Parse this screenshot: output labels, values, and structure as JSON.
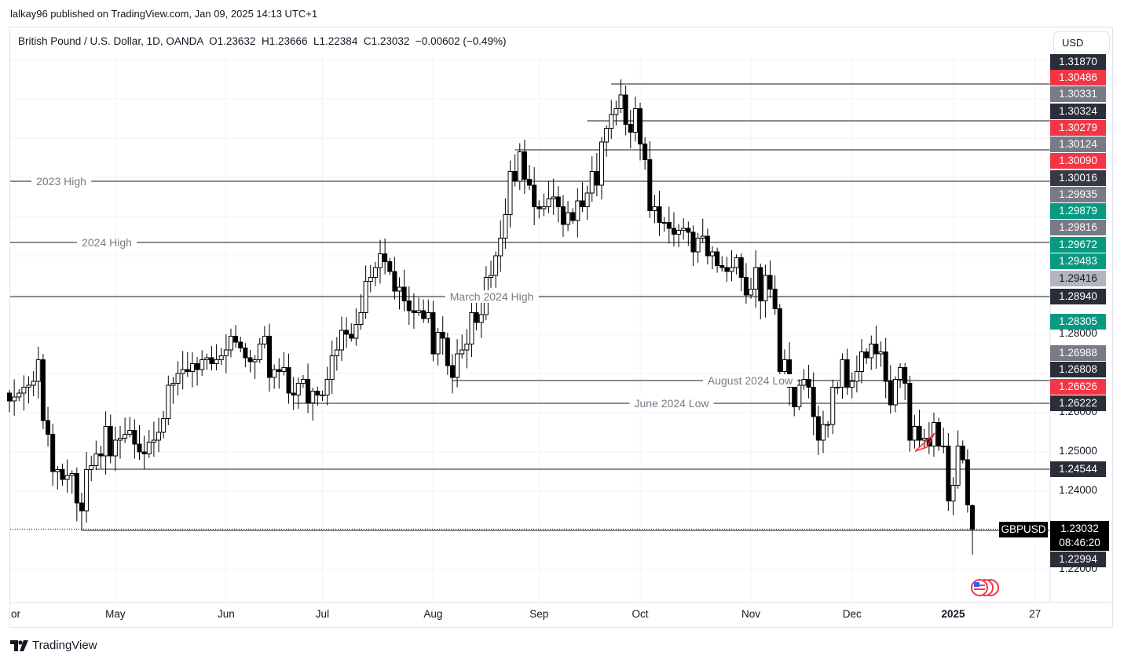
{
  "published": "lalkay96 published on TradingView.com, Jan 09, 2025 14:13 UTC+1",
  "legend": {
    "symbol": "British Pound / U.S. Dollar, 1D, OANDA",
    "open": "O1.23632",
    "high": "H1.23666",
    "low": "L1.22384",
    "close": "C1.23032",
    "change": "−0.00602 (−0.49%)"
  },
  "currency_button": "USD",
  "symbol_tag": "GBPUSD",
  "current_price": "1.23032",
  "countdown": "08:46:20",
  "logo_text": "TradingView",
  "colors": {
    "up": "#ffffff",
    "down": "#000000",
    "wick": "#000000",
    "red": "#f23645",
    "green": "#089981",
    "gray": "#787b86",
    "dark": "#2a2e39",
    "light": "#b2b5be",
    "grid": "#f0f3fa"
  },
  "chart_data": {
    "type": "candlestick",
    "title": "British Pound / U.S. Dollar, 1D, OANDA",
    "ylim": [
      1.2062,
      1.3528
    ],
    "y_ticks": [
      "1.28000",
      "1.26000",
      "1.25000",
      "1.24000",
      "1.22000"
    ],
    "x_ticks": [
      "or",
      "May",
      "Jun",
      "Jul",
      "Aug",
      "Sep",
      "Oct",
      "Nov",
      "Dec",
      "2025",
      "27"
    ],
    "last_candle": {
      "open": 1.23632,
      "high": 1.23666,
      "low": 1.22384,
      "close": 1.23032
    },
    "close": [
      1.263,
      1.264,
      1.265,
      1.2665,
      1.267,
      1.268,
      1.2735,
      1.258,
      1.2545,
      1.245,
      1.2455,
      1.243,
      1.244,
      1.2445,
      1.237,
      1.235,
      1.2455,
      1.2465,
      1.2495,
      1.249,
      1.2565,
      1.249,
      1.253,
      1.2535,
      1.2545,
      1.2555,
      1.252,
      1.25,
      1.2495,
      1.2525,
      1.253,
      1.255,
      1.2585,
      1.267,
      1.2675,
      1.27,
      1.271,
      1.2705,
      1.2725,
      1.271,
      1.2735,
      1.274,
      1.2725,
      1.2735,
      1.2745,
      1.276,
      1.2795,
      1.278,
      1.2765,
      1.274,
      1.273,
      1.2735,
      1.2775,
      1.2795,
      1.269,
      1.271,
      1.2705,
      1.2715,
      1.265,
      1.2645,
      1.2675,
      1.2685,
      1.2625,
      1.2655,
      1.2645,
      1.2645,
      1.2685,
      1.2745,
      1.276,
      1.281,
      1.28,
      1.279,
      1.2825,
      1.2855,
      1.2935,
      1.2945,
      1.297,
      1.3005,
      1.2985,
      1.296,
      1.291,
      1.292,
      1.2885,
      1.286,
      1.2855,
      1.286,
      1.284,
      1.2855,
      1.275,
      1.2805,
      1.279,
      1.272,
      1.269,
      1.275,
      1.276,
      1.2775,
      1.2855,
      1.283,
      1.285,
      1.2945,
      1.295,
      1.3,
      1.3045,
      1.3105,
      1.3215,
      1.319,
      1.3265,
      1.3195,
      1.318,
      1.3125,
      1.312,
      1.3125,
      1.3145,
      1.315,
      1.3125,
      1.308,
      1.311,
      1.309,
      1.314,
      1.3125,
      1.316,
      1.3215,
      1.318,
      1.329,
      1.3325,
      1.336,
      1.3375,
      1.341,
      1.3335,
      1.3315,
      1.3375,
      1.3285,
      1.3245,
      1.3115,
      1.3125,
      1.3085,
      1.3085,
      1.307,
      1.3055,
      1.3065,
      1.307,
      1.306,
      1.301,
      1.3045,
      1.305,
      1.3,
      1.301,
      1.2975,
      1.297,
      1.296,
      1.297,
      1.2995,
      1.2945,
      1.29,
      1.2915,
      1.297,
      1.2885,
      1.295,
      1.2915,
      1.2865,
      1.2705,
      1.2735,
      1.2665,
      1.2615,
      1.267,
      1.2685,
      1.2665,
      1.259,
      1.253,
      1.257,
      1.257,
      1.2665,
      1.2665,
      1.2735,
      1.2665,
      1.268,
      1.2705,
      1.2755,
      1.274,
      1.2775,
      1.275,
      1.2755,
      1.268,
      1.262,
      1.2685,
      1.2715,
      1.2675,
      1.253,
      1.2565,
      1.253,
      1.2535,
      1.2515,
      1.2575,
      1.2515,
      1.2515,
      1.2375,
      1.2415,
      1.2515,
      1.248,
      1.2365,
      1.23032
    ]
  },
  "levels": [
    {
      "label": "2023 High",
      "price": 1.319
    },
    {
      "label": "2024 High",
      "price": 1.3034
    },
    {
      "label": "March 2024 High",
      "price": 1.2896
    },
    {
      "label": "August 2024 Low",
      "price": 1.2682
    },
    {
      "label": "June 2024 Low",
      "price": 1.2624
    },
    {
      "label": "",
      "price": 1.2456
    },
    {
      "label": "",
      "price": 1.23
    },
    {
      "label": "",
      "price": 1.3438
    },
    {
      "label": "",
      "price": 1.3344
    },
    {
      "label": "",
      "price": 1.327
    }
  ],
  "price_badges": [
    {
      "text": "1.31870",
      "color": "#2a2e39"
    },
    {
      "text": "1.30486",
      "color": "#f23645"
    },
    {
      "text": "1.30331",
      "color": "#787b86"
    },
    {
      "text": "1.30324",
      "color": "#2a2e39"
    },
    {
      "text": "1.30279",
      "color": "#f23645"
    },
    {
      "text": "1.30124",
      "color": "#787b86"
    },
    {
      "text": "1.30090",
      "color": "#f23645"
    },
    {
      "text": "1.30016",
      "color": "#363a45"
    },
    {
      "text": "1.29935",
      "color": "#787b86"
    },
    {
      "text": "1.29879",
      "color": "#089981"
    },
    {
      "text": "1.29816",
      "color": "#787b86"
    },
    {
      "text": "1.29672",
      "color": "#089981"
    },
    {
      "text": "1.29483",
      "color": "#089981"
    },
    {
      "text": "1.29416",
      "color": "#b2b5be"
    },
    {
      "text": "1.28940",
      "color": "#2a2e39"
    },
    {
      "text": "1.28305",
      "color": "#089981"
    },
    {
      "text": "1.26988",
      "color": "#787b86"
    },
    {
      "text": "1.26808",
      "color": "#2a2e39"
    },
    {
      "text": "1.26626",
      "color": "#f23645"
    },
    {
      "text": "1.26222",
      "color": "#2a2e39"
    },
    {
      "text": "1.24544",
      "color": "#2a2e39"
    },
    {
      "text": "1.22994",
      "color": "#2a2e39"
    }
  ]
}
